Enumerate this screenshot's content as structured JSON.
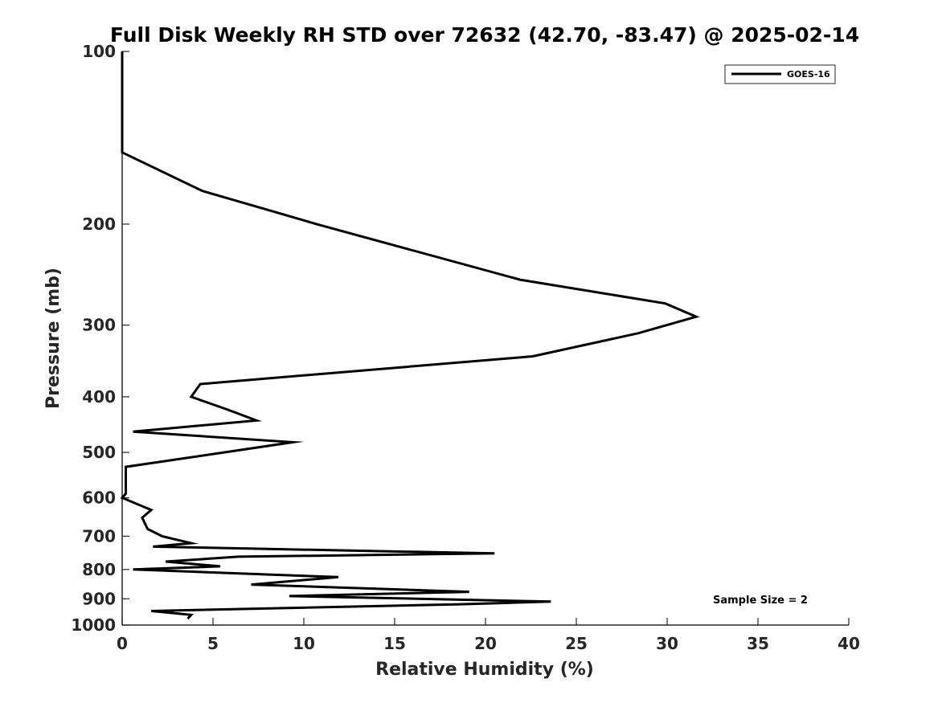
{
  "chart_data": {
    "type": "line",
    "title": "Full Disk Weekly RH STD over 72632 (42.70, -83.47) @ 2025-02-14",
    "xlabel": "Relative Humidity (%)",
    "ylabel": "Pressure (mb)",
    "xlim": [
      0,
      40
    ],
    "ylim": [
      100,
      1000
    ],
    "yscale": "log",
    "y_reversed": true,
    "grid": false,
    "x_ticks": [
      0,
      5,
      10,
      15,
      20,
      25,
      30,
      35,
      40
    ],
    "x_tick_labels": [
      "0",
      "5",
      "10",
      "15",
      "20",
      "25",
      "30",
      "35",
      "40"
    ],
    "y_ticks": [
      100,
      200,
      300,
      400,
      500,
      600,
      700,
      800,
      900,
      1000
    ],
    "y_tick_labels": [
      "100",
      "200",
      "300",
      "400",
      "500",
      "600",
      "700",
      "800",
      "900",
      "1000"
    ],
    "legend": {
      "position": "top-right",
      "entries": [
        "GOES-16"
      ]
    },
    "annotation": "Sample Size = 2",
    "series": [
      {
        "name": "GOES-16",
        "color": "#000000",
        "points": [
          {
            "x": 0.0,
            "p": 100
          },
          {
            "x": 0.0,
            "p": 150
          },
          {
            "x": 4.4,
            "p": 175
          },
          {
            "x": 10.7,
            "p": 200
          },
          {
            "x": 21.9,
            "p": 250
          },
          {
            "x": 29.9,
            "p": 275
          },
          {
            "x": 31.6,
            "p": 290
          },
          {
            "x": 28.4,
            "p": 310
          },
          {
            "x": 22.6,
            "p": 340
          },
          {
            "x": 4.3,
            "p": 380
          },
          {
            "x": 3.8,
            "p": 400
          },
          {
            "x": 5.7,
            "p": 420
          },
          {
            "x": 7.4,
            "p": 440
          },
          {
            "x": 0.6,
            "p": 460
          },
          {
            "x": 9.4,
            "p": 480
          },
          {
            "x": 5.6,
            "p": 500
          },
          {
            "x": 0.2,
            "p": 530
          },
          {
            "x": 0.2,
            "p": 560
          },
          {
            "x": 0.2,
            "p": 590
          },
          {
            "x": 0.0,
            "p": 600
          },
          {
            "x": 1.6,
            "p": 630
          },
          {
            "x": 1.1,
            "p": 650
          },
          {
            "x": 1.4,
            "p": 680
          },
          {
            "x": 2.2,
            "p": 700
          },
          {
            "x": 3.8,
            "p": 720
          },
          {
            "x": 1.7,
            "p": 730
          },
          {
            "x": 20.5,
            "p": 750
          },
          {
            "x": 6.4,
            "p": 760
          },
          {
            "x": 2.4,
            "p": 775
          },
          {
            "x": 5.4,
            "p": 790
          },
          {
            "x": 0.6,
            "p": 800
          },
          {
            "x": 11.9,
            "p": 825
          },
          {
            "x": 7.1,
            "p": 850
          },
          {
            "x": 19.1,
            "p": 875
          },
          {
            "x": 9.2,
            "p": 890
          },
          {
            "x": 23.6,
            "p": 910
          },
          {
            "x": 18.6,
            "p": 920
          },
          {
            "x": 1.6,
            "p": 945
          },
          {
            "x": 3.8,
            "p": 960
          },
          {
            "x": 3.6,
            "p": 975
          }
        ]
      }
    ]
  }
}
